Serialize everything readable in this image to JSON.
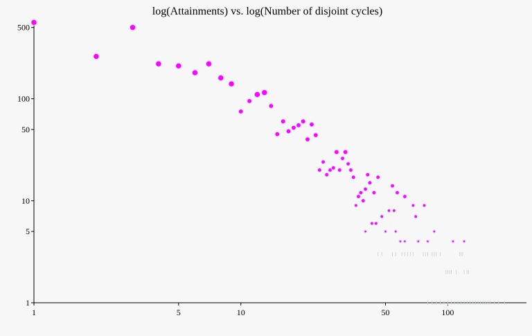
{
  "chart_data": {
    "type": "scatter",
    "title": "log(Attainments) vs. log(Number of disjoint cycles)",
    "xlabel": "",
    "ylabel": "",
    "x_scale": "log",
    "y_scale": "log",
    "xlim": [
      1,
      240
    ],
    "ylim": [
      1,
      600
    ],
    "grid": false,
    "legend": "none",
    "x_ticks": [
      {
        "value": 1,
        "label": "1"
      },
      {
        "value": 5,
        "label": "5"
      },
      {
        "value": 10,
        "label": "10"
      },
      {
        "value": 50,
        "label": "50"
      },
      {
        "value": 100,
        "label": "100"
      }
    ],
    "y_ticks": [
      {
        "value": 1,
        "label": "1"
      },
      {
        "value": 5,
        "label": "5"
      },
      {
        "value": 10,
        "label": "10"
      },
      {
        "value": 50,
        "label": "50"
      },
      {
        "value": 100,
        "label": "100"
      },
      {
        "value": 500,
        "label": "500"
      }
    ],
    "colors": {
      "point": "#ff00ff",
      "point_halo": "#cfd6ff",
      "faint_point": "#cfd6d6",
      "axis": "#000000",
      "background": "#f7f7f7"
    },
    "series": [
      {
        "x": [
          1,
          2,
          3,
          4,
          5,
          6,
          7,
          8,
          9,
          10,
          11,
          12,
          13,
          14,
          15,
          16,
          17,
          18,
          19,
          20,
          21,
          22,
          23,
          24,
          25,
          26,
          27,
          28,
          29,
          30,
          31,
          32,
          33,
          34,
          35,
          36,
          37,
          38,
          39,
          40,
          41,
          42,
          43,
          44,
          45,
          46,
          48,
          50,
          52,
          54,
          55,
          57,
          59,
          62,
          68,
          70,
          72,
          77
        ],
        "y": [
          560,
          260,
          500,
          220,
          210,
          180,
          220,
          160,
          140,
          75,
          95,
          110,
          115,
          85,
          45,
          60,
          48,
          52,
          55,
          60,
          40,
          56,
          44,
          20,
          24,
          18,
          20,
          21,
          30,
          20,
          26,
          30,
          23,
          20,
          17,
          9,
          11,
          12,
          10,
          13,
          18,
          15,
          6,
          12,
          6,
          17,
          7,
          5,
          8,
          14,
          8,
          12,
          4,
          11,
          9,
          7,
          4,
          9
        ]
      },
      {
        "x": [
          40,
          56,
          62,
          72,
          80,
          86,
          106,
          120
        ],
        "y": [
          5,
          5,
          4,
          4,
          4,
          5,
          4,
          4
        ]
      }
    ],
    "faint_series": [
      {
        "x": [
          46,
          48,
          54,
          56,
          60,
          62,
          64,
          66,
          68,
          76,
          78,
          80,
          84,
          86,
          88,
          92,
          98,
          100,
          102,
          104,
          110,
          114,
          116,
          118,
          120,
          124,
          126
        ],
        "y": [
          3,
          3,
          3,
          3,
          3,
          3,
          3,
          3,
          3,
          3,
          3,
          3,
          3,
          3,
          3,
          3,
          2,
          2,
          2,
          2,
          2,
          3,
          3,
          3,
          2,
          2,
          2
        ]
      },
      {
        "x": [
          80,
          84,
          88,
          92,
          96,
          100,
          104,
          108,
          112,
          116,
          120,
          124,
          128,
          132,
          136,
          140,
          144,
          148,
          152,
          156,
          160,
          168,
          176,
          188
        ],
        "y": [
          1,
          1,
          1,
          1,
          1,
          1,
          1,
          1,
          1,
          1,
          1,
          1,
          1,
          1,
          1,
          1,
          1,
          1,
          1,
          1,
          1,
          1,
          1,
          1
        ]
      }
    ]
  }
}
